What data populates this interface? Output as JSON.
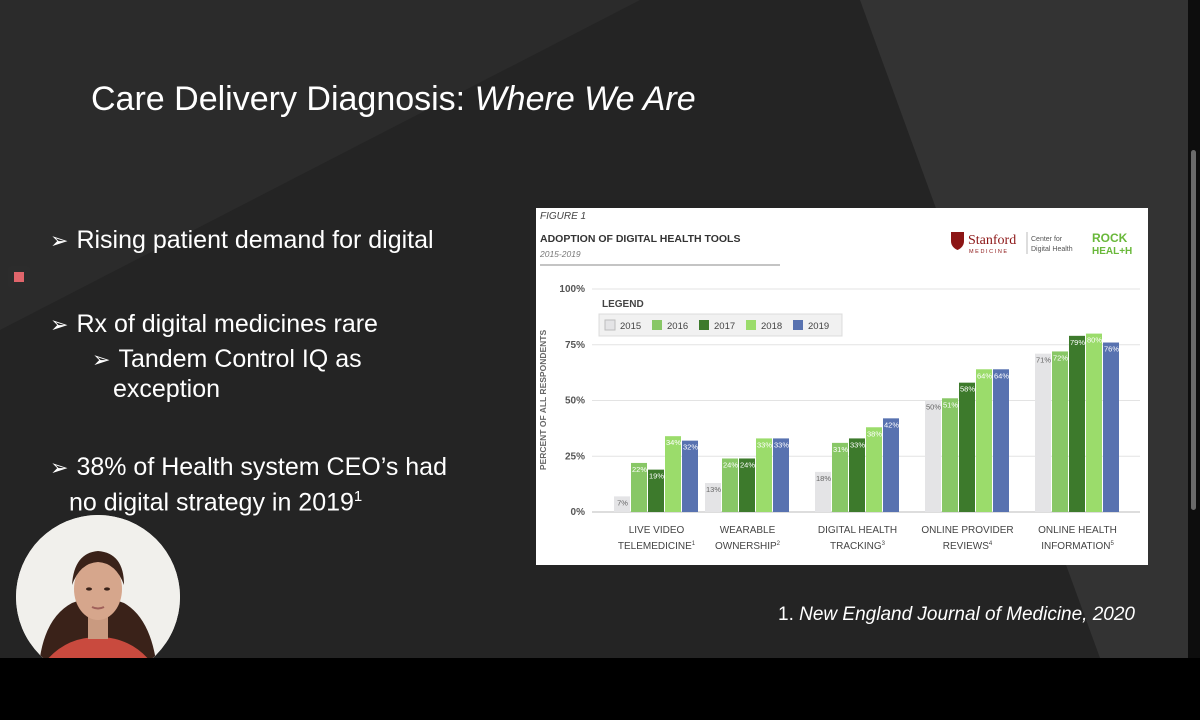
{
  "slide": {
    "title_main": "Care Delivery Diagnosis: ",
    "title_italic": "Where We Are",
    "bullets": [
      {
        "text": "Rising patient demand for digital"
      },
      {
        "text": "Rx of digital medicines rare"
      },
      {
        "text": "Tandem Control IQ as",
        "continuation": "exception"
      },
      {
        "text": "38% of Health system CEO’s had",
        "continuation": "no digital strategy in 2019",
        "superscript": "1"
      }
    ],
    "citation_number": "1. ",
    "citation_source": "New England Journal of Medicine, 2020"
  },
  "figure": {
    "label": "FIGURE 1",
    "title": "ADOPTION OF DIGITAL HEALTH TOOLS",
    "subtitle": "2015-2019",
    "logo_stanford": "Stanford",
    "logo_medicine": "MEDICINE",
    "logo_center_line1": "Center for",
    "logo_center_line2": "Digital Health",
    "logo_rock": "ROCK",
    "logo_health": "HEAL+H"
  },
  "chart_data": {
    "type": "bar",
    "ylabel": "PERCENT OF ALL RESPONDENTS",
    "ylim": [
      0,
      100
    ],
    "yticks": [
      "0%",
      "25%",
      "50%",
      "75%",
      "100%"
    ],
    "grid": true,
    "legend_title": "LEGEND",
    "legend_placement": "top-left",
    "categories": [
      {
        "line1": "LIVE VIDEO",
        "line2": "TELEMEDICINE",
        "note": "1"
      },
      {
        "line1": "WEARABLE",
        "line2": "OWNERSHIP",
        "note": "2"
      },
      {
        "line1": "DIGITAL HEALTH",
        "line2": "TRACKING",
        "note": "3"
      },
      {
        "line1": "ONLINE PROVIDER",
        "line2": "REVIEWS",
        "note": "4"
      },
      {
        "line1": "ONLINE HEALTH",
        "line2": "INFORMATION",
        "note": "5"
      }
    ],
    "series": [
      {
        "name": "2015",
        "color": "#e4e4e6",
        "values": [
          7,
          13,
          18,
          50,
          71
        ],
        "labels": [
          "7%",
          "13%",
          "18%",
          "50%",
          "71%"
        ]
      },
      {
        "name": "2016",
        "color": "#88c766",
        "values": [
          22,
          24,
          31,
          51,
          72
        ],
        "labels": [
          "22%",
          "24%",
          "31%",
          "51%",
          "72%"
        ]
      },
      {
        "name": "2017",
        "color": "#3d7a2c",
        "values": [
          19,
          24,
          33,
          58,
          79
        ],
        "labels": [
          "19%",
          "24%",
          "33%",
          "58%",
          "79%"
        ]
      },
      {
        "name": "2018",
        "color": "#9bdc6b",
        "values": [
          34,
          33,
          38,
          64,
          80
        ],
        "labels": [
          "34%",
          "33%",
          "38%",
          "64%",
          "80%"
        ]
      },
      {
        "name": "2019",
        "color": "#5872b0",
        "values": [
          32,
          33,
          42,
          64,
          76
        ],
        "labels": [
          "32%",
          "33%",
          "42%",
          "64%",
          "76%"
        ]
      }
    ]
  },
  "colors": {
    "slide_bg": "#242424",
    "stanford_red": "#8c1515",
    "rock_health_green": "#69b83a"
  },
  "icons": {
    "record": "record-icon",
    "bullet": "arrow-bullet-icon"
  }
}
